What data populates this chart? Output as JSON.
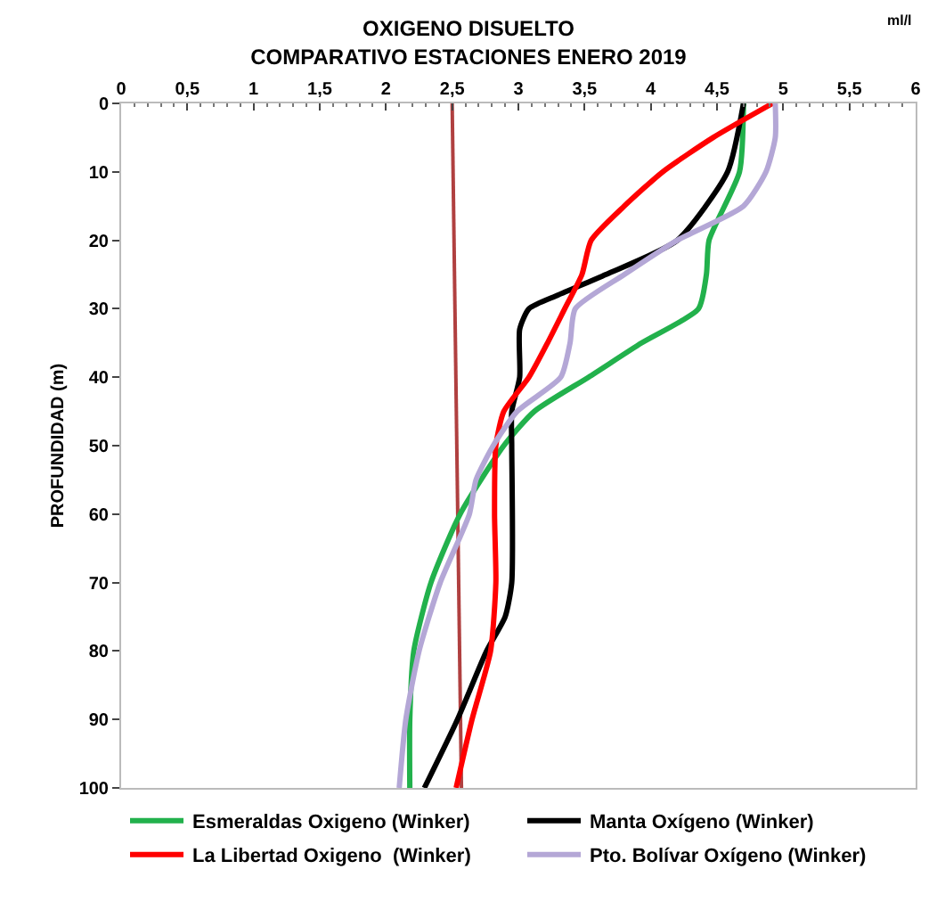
{
  "chart_data": {
    "type": "line",
    "title": "OXIGENO DISUELTO\nCOMPARATIVO ESTACIONES ENERO 2019",
    "ylabel": "PROFUNDIDAD (m)",
    "annotations": [
      "ml/l"
    ],
    "xlim": [
      0,
      6
    ],
    "xticks": [
      0,
      {
        "value": 0.5,
        "label": "0,5"
      },
      1,
      {
        "value": 1.5,
        "label": "1,5"
      },
      2,
      {
        "value": 2.5,
        "label": "2,5"
      },
      3,
      {
        "value": 3.5,
        "label": "3,5"
      },
      4,
      {
        "value": 4.5,
        "label": "4,5"
      },
      5,
      {
        "value": 5.5,
        "label": "5,5"
      },
      6
    ],
    "ylim": [
      100,
      0
    ],
    "yticks": [
      0,
      10,
      20,
      30,
      40,
      50,
      60,
      70,
      80,
      90,
      100
    ],
    "grid": false,
    "legend": "bottom",
    "marker": "none",
    "line_style": "solid",
    "series": [
      {
        "color": "#b04040",
        "x": [
          2.5,
          2.57
        ],
        "values": [
          0,
          100
        ]
      },
      {
        "name": "Esmeraldas Oxigeno (Winker)",
        "color": "#22b14c",
        "x": [
          4.7,
          4.67,
          4.44,
          4.42,
          4.36,
          3.93,
          3.53,
          3.12,
          2.89,
          2.56,
          2.34,
          2.21,
          2.18,
          2.18
        ],
        "values": [
          0,
          10,
          20,
          25,
          30,
          35,
          40,
          45,
          50,
          60,
          70,
          80,
          90,
          100
        ]
      },
      {
        "name": "Manta Oxígeno (Winker)",
        "color": "#000000",
        "x": [
          4.7,
          4.58,
          4.2,
          3.66,
          3.3,
          3.08,
          3.01,
          3.01,
          2.95,
          2.95,
          2.95,
          2.9,
          2.76,
          2.54,
          2.29
        ],
        "values": [
          0,
          10,
          20,
          25,
          28,
          30,
          33,
          40,
          45,
          50,
          70,
          75,
          80,
          90,
          100
        ]
      },
      {
        "name": "La Libertad Oxigeno  (Winker)",
        "color": "#ff0000",
        "x": [
          4.92,
          4.47,
          4.09,
          3.8,
          3.55,
          3.48,
          3.35,
          3.22,
          3.08,
          2.89,
          2.83,
          2.82,
          2.83,
          2.79,
          2.65,
          2.53
        ],
        "values": [
          0,
          5,
          10,
          15,
          20,
          25,
          30,
          35,
          40,
          45,
          50,
          60,
          70,
          80,
          90,
          100
        ]
      },
      {
        "name": "Pto. Bolívar Oxígeno (Winker)",
        "color": "#b4a7d6",
        "x": [
          4.94,
          4.94,
          4.87,
          4.7,
          4.2,
          3.8,
          3.43,
          3.39,
          3.32,
          2.99,
          2.81,
          2.68,
          2.63,
          2.41,
          2.25,
          2.15,
          2.1
        ],
        "values": [
          0,
          5,
          10,
          15,
          20,
          25,
          30,
          35,
          40,
          45,
          50,
          55,
          60,
          70,
          80,
          90,
          100
        ]
      }
    ]
  }
}
